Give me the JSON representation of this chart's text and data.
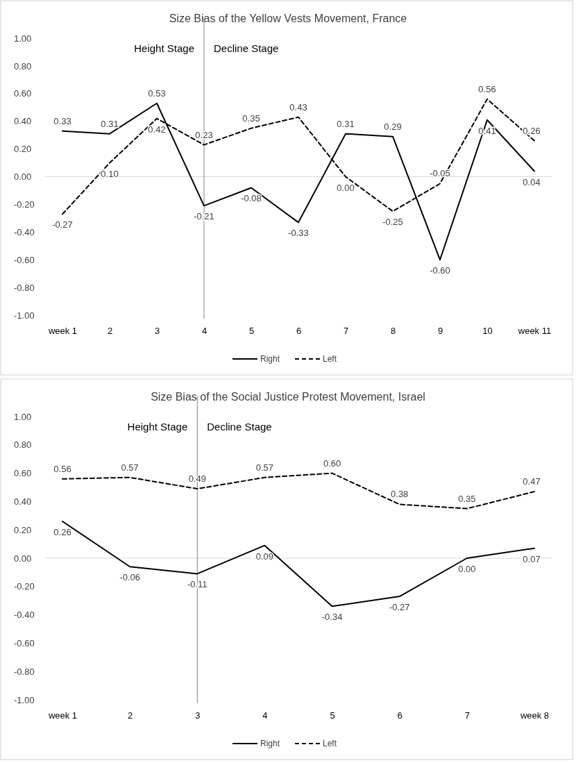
{
  "chart_data": [
    {
      "type": "line",
      "title": "Size Bias of the Yellow Vests Movement, France",
      "categories": [
        "week 1",
        "2",
        "3",
        "4",
        "5",
        "6",
        "7",
        "8",
        "9",
        "10",
        "week 11"
      ],
      "series": [
        {
          "name": "Right",
          "color": "#000000",
          "line_style": "solid",
          "values": [
            0.33,
            0.31,
            0.53,
            -0.21,
            -0.08,
            -0.33,
            0.31,
            0.29,
            -0.6,
            0.41,
            0.04
          ],
          "value_labels": [
            "0.33",
            "0.31",
            "0.53",
            "-0.21",
            "-0.08",
            "-0.33",
            "0.31",
            "0.29",
            "-0.60",
            "0.41",
            "0.04"
          ]
        },
        {
          "name": "Left",
          "color": "#000000",
          "line_style": "dashed",
          "values": [
            -0.27,
            0.1,
            0.42,
            0.23,
            0.35,
            0.43,
            0.0,
            -0.25,
            -0.05,
            0.56,
            0.26
          ],
          "value_labels": [
            "-0.27",
            "0.10",
            "0.42",
            "0.23",
            "0.35",
            "0.43",
            "0.00",
            "-0.25",
            "-0.05",
            "0.56",
            "0.26"
          ]
        }
      ],
      "ylim": [
        -1,
        1
      ],
      "yticks": [
        {
          "value": -1,
          "label": "-1.00"
        },
        {
          "value": -0.8,
          "label": "-0.80"
        },
        {
          "value": -0.6,
          "label": "-0.60"
        },
        {
          "value": -0.4,
          "label": "-0.40"
        },
        {
          "value": -0.2,
          "label": "-0.20"
        },
        {
          "value": 0,
          "label": "0.00"
        },
        {
          "value": 0.2,
          "label": "0.20"
        },
        {
          "value": 0.4,
          "label": "0.40"
        },
        {
          "value": 0.6,
          "label": "0.60"
        },
        {
          "value": 0.8,
          "label": "0.80"
        },
        {
          "value": 1,
          "label": "1.00"
        }
      ],
      "ref_lines": [
        {
          "axis": "x",
          "value": "4",
          "color": "#808080"
        }
      ],
      "annotations": [
        "Height Stage",
        "Decline Stage"
      ],
      "legend": "bottom",
      "marker": "none",
      "grid": false
    },
    {
      "type": "line",
      "title": "Size Bias of the Social Justice Protest Movement, Israel",
      "categories": [
        "week 1",
        "2",
        "3",
        "4",
        "5",
        "6",
        "7",
        "week 8"
      ],
      "series": [
        {
          "name": "Right",
          "color": "#000000",
          "line_style": "solid",
          "values": [
            0.26,
            -0.06,
            -0.11,
            0.09,
            -0.34,
            -0.27,
            0.0,
            0.07
          ],
          "value_labels": [
            "0.26",
            "-0.06",
            "-0.11",
            "0.09",
            "-0.34",
            "-0.27",
            "0.00",
            "0.07"
          ]
        },
        {
          "name": "Left",
          "color": "#000000",
          "line_style": "dashed",
          "values": [
            0.56,
            0.57,
            0.49,
            0.57,
            0.6,
            0.38,
            0.35,
            0.47
          ],
          "value_labels": [
            "0.56",
            "0.57",
            "0.49",
            "0.57",
            "0.60",
            "0.38",
            "0.35",
            "0.47"
          ]
        }
      ],
      "ylim": [
        -1,
        1
      ],
      "yticks": [
        {
          "value": -1,
          "label": "-1.00"
        },
        {
          "value": -0.8,
          "label": "-0.80"
        },
        {
          "value": -0.6,
          "label": "-0.60"
        },
        {
          "value": -0.4,
          "label": "-0.40"
        },
        {
          "value": -0.2,
          "label": "-0.20"
        },
        {
          "value": 0,
          "label": "0.00"
        },
        {
          "value": 0.2,
          "label": "0.20"
        },
        {
          "value": 0.4,
          "label": "0.40"
        },
        {
          "value": 0.6,
          "label": "0.60"
        },
        {
          "value": 0.8,
          "label": "0.80"
        },
        {
          "value": 1,
          "label": "1.00"
        }
      ],
      "ref_lines": [
        {
          "axis": "x",
          "value": "3",
          "color": "#808080"
        }
      ],
      "annotations": [
        "Height Stage",
        "Decline Stage"
      ],
      "legend": "bottom",
      "marker": "none",
      "grid": false
    }
  ]
}
